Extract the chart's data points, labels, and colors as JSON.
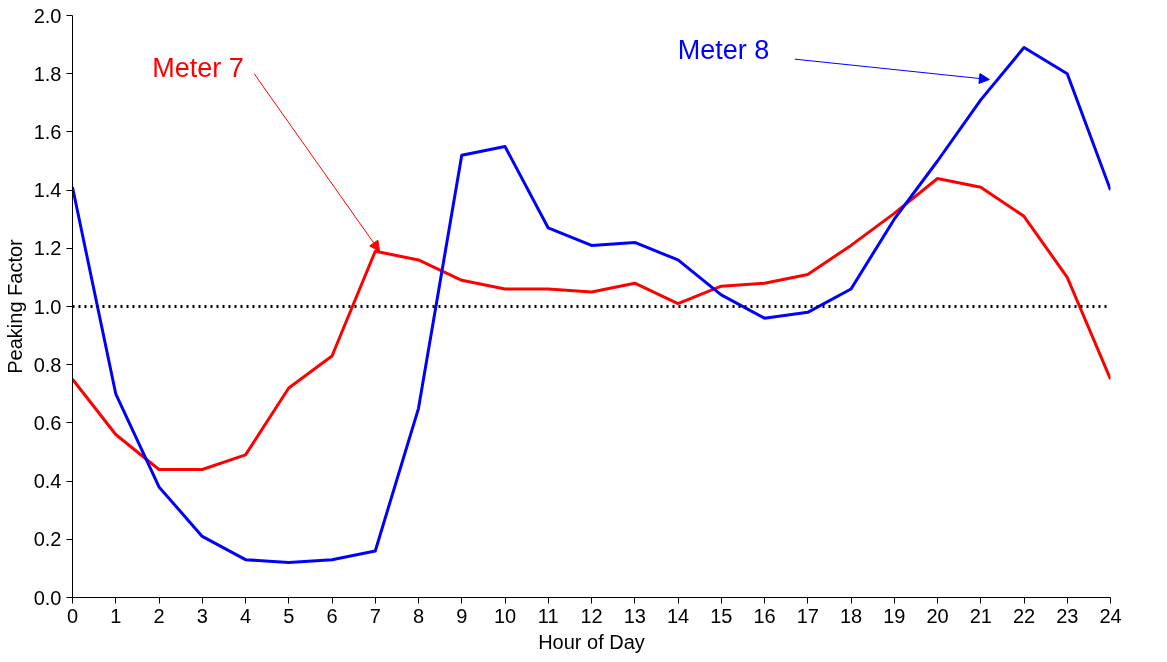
{
  "chart_data": {
    "type": "line",
    "xlabel": "Hour of Day",
    "ylabel": "Peaking Factor",
    "xlim": [
      0,
      24
    ],
    "xticks": [
      0,
      1,
      2,
      3,
      4,
      5,
      6,
      7,
      8,
      9,
      10,
      11,
      12,
      13,
      14,
      15,
      16,
      17,
      18,
      19,
      20,
      21,
      22,
      23,
      24
    ],
    "ylim": [
      0,
      2
    ],
    "yticks": [
      {
        "value": 0,
        "label": "0.0"
      },
      {
        "value": 0.2,
        "label": "0.2"
      },
      {
        "value": 0.4,
        "label": "0.4"
      },
      {
        "value": 0.6,
        "label": "0.6"
      },
      {
        "value": 0.8,
        "label": "0.8"
      },
      {
        "value": 1,
        "label": "1.0"
      },
      {
        "value": 1.2,
        "label": "1.2"
      },
      {
        "value": 1.4,
        "label": "1.4"
      },
      {
        "value": 1.6,
        "label": "1.6"
      },
      {
        "value": 1.8,
        "label": "1.8"
      },
      {
        "value": 2,
        "label": "2.0"
      }
    ],
    "x": [
      0,
      1,
      2,
      3,
      4,
      5,
      6,
      7,
      8,
      9,
      10,
      11,
      12,
      13,
      14,
      15,
      16,
      17,
      18,
      19,
      20,
      21,
      22,
      23,
      24
    ],
    "series": [
      {
        "color": "#ff0000",
        "values": [
          0.75,
          0.56,
          0.44,
          0.44,
          0.49,
          0.72,
          0.83,
          1.19,
          1.16,
          1.09,
          1.06,
          1.06,
          1.05,
          1.08,
          1.01,
          1.07,
          1.08,
          1.11,
          1.21,
          1.32,
          1.44,
          1.41,
          1.31,
          1.1,
          0.75
        ]
      },
      {
        "color": "#0000ff",
        "values": [
          1.41,
          0.7,
          0.38,
          0.21,
          0.13,
          0.12,
          0.13,
          0.16,
          0.65,
          1.52,
          1.55,
          1.27,
          1.21,
          1.22,
          1.16,
          1.04,
          0.96,
          0.98,
          1.06,
          1.3,
          1.5,
          1.71,
          1.89,
          1.8,
          1.4
        ]
      }
    ],
    "annotations": [
      {
        "text": "Meter 7",
        "x": 7.1,
        "y": 1.19
      },
      {
        "text": "Meter 8",
        "x": 21.2,
        "y": 1.78
      }
    ],
    "ref_lines": [
      {
        "axis": "y",
        "value": 1,
        "color": "#000000",
        "line_style": "dotted"
      }
    ],
    "grid": false,
    "marker": "none",
    "line_style": "solid"
  }
}
